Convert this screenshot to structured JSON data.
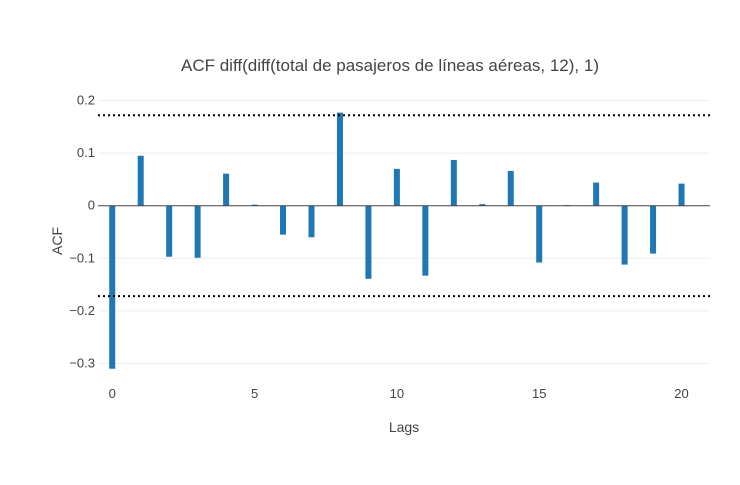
{
  "chart_data": {
    "type": "bar",
    "title": "ACF diff(diff(total de pasajeros de líneas aéreas, 12), 1)",
    "xlabel": "Lags",
    "ylabel": "ACF",
    "x": [
      0,
      1,
      2,
      3,
      4,
      5,
      6,
      7,
      8,
      9,
      10,
      11,
      12,
      13,
      14,
      15,
      16,
      17,
      18,
      19,
      20
    ],
    "values": [
      -0.31,
      0.095,
      -0.097,
      -0.099,
      0.061,
      0.002,
      -0.055,
      -0.06,
      0.177,
      -0.139,
      0.07,
      -0.133,
      0.087,
      0.003,
      0.066,
      -0.108,
      0.001,
      0.044,
      -0.112,
      -0.091,
      0.042
    ],
    "xlim": [
      -0.5,
      21
    ],
    "ylim": [
      -0.32,
      0.22
    ],
    "xticks": [
      0,
      5,
      10,
      15,
      20
    ],
    "yticks": [
      -0.3,
      -0.2,
      -0.1,
      0,
      0.1,
      0.2
    ],
    "ytick_labels": [
      "−0.3",
      "−0.2",
      "−0.1",
      "0",
      "0.1",
      "0.2"
    ],
    "confidence_bounds": [
      0.172,
      -0.172
    ],
    "grid": true,
    "bar_color": "#1f77b4",
    "bound_color": "#000000",
    "zero_line_color": "#444444",
    "grid_color": "#eeeeee",
    "text_color": "#444444"
  }
}
